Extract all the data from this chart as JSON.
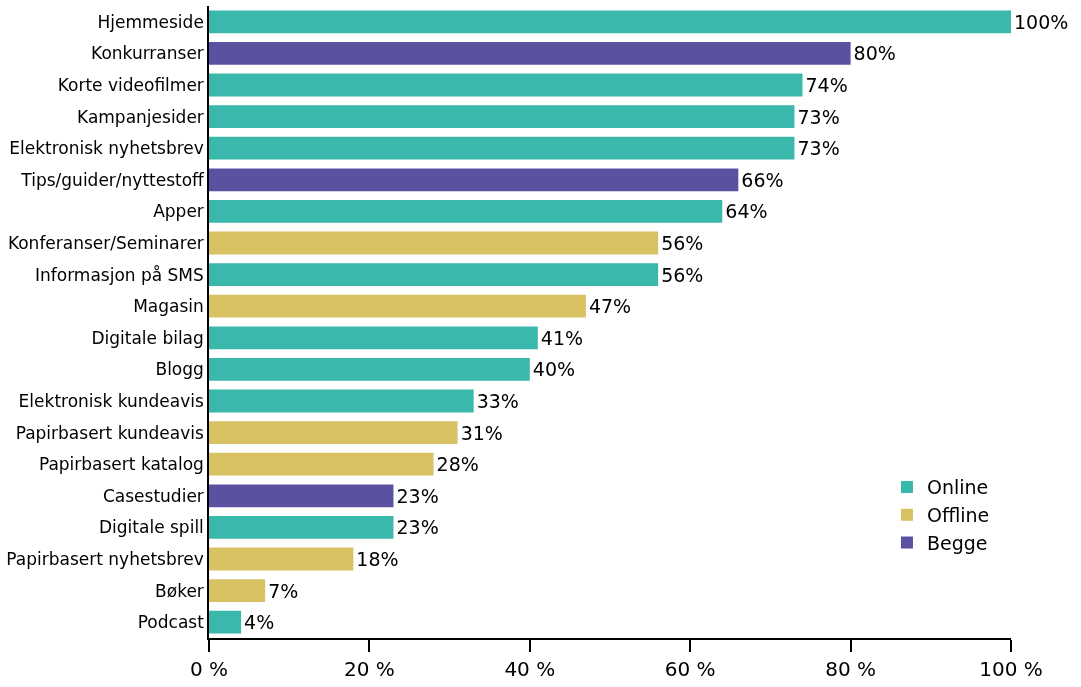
{
  "chart_data": {
    "type": "bar",
    "orientation": "horizontal",
    "categories": [
      "Hjemmeside",
      "Konkurranser",
      "Korte videofilmer",
      "Kampanjesider",
      "Elektronisk nyhetsbrev",
      "Tips/guider/nyttestoff",
      "Apper",
      "Konferanser/Seminarer",
      "Informasjon på SMS",
      "Magasin",
      "Digitale bilag",
      "Blogg",
      "Elektronisk kundeavis",
      "Papirbasert kundeavis",
      "Papirbasert katalog",
      "Casestudier",
      "Digitale spill",
      "Papirbasert nyhetsbrev",
      "Bøker",
      "Podcast"
    ],
    "series": [
      {
        "name": "Online",
        "color": "#3bb8ac",
        "values": [
          100,
          null,
          74,
          73,
          73,
          null,
          64,
          null,
          56,
          null,
          41,
          40,
          33,
          null,
          null,
          null,
          23,
          null,
          null,
          4
        ],
        "value_labels": [
          "100%",
          null,
          "74%",
          "73%",
          "73%",
          null,
          "64%",
          null,
          "56%",
          null,
          "41%",
          "40%",
          "33%",
          null,
          null,
          null,
          "23%",
          null,
          null,
          "4%"
        ]
      },
      {
        "name": "Offline",
        "color": "#d9c264",
        "values": [
          null,
          null,
          null,
          null,
          null,
          null,
          null,
          56,
          null,
          47,
          null,
          null,
          null,
          31,
          28,
          null,
          null,
          18,
          7,
          null
        ],
        "value_labels": [
          null,
          null,
          null,
          null,
          null,
          null,
          null,
          "56%",
          null,
          "47%",
          null,
          null,
          null,
          "31%",
          "28%",
          null,
          null,
          "18%",
          "7%",
          null
        ]
      },
      {
        "name": "Begge",
        "color": "#5a52a0",
        "values": [
          null,
          80,
          null,
          null,
          null,
          66,
          null,
          null,
          null,
          null,
          null,
          null,
          null,
          null,
          null,
          23,
          null,
          null,
          null,
          null
        ],
        "value_labels": [
          null,
          "80%",
          null,
          null,
          null,
          "66%",
          null,
          null,
          null,
          null,
          null,
          null,
          null,
          null,
          null,
          "23%",
          null,
          null,
          null,
          null
        ]
      }
    ],
    "xlim": [
      0,
      100
    ],
    "xticks": [
      {
        "value": 0,
        "label": "0 %"
      },
      {
        "value": 20,
        "label": "20 %"
      },
      {
        "value": 40,
        "label": "40 %"
      },
      {
        "value": 60,
        "label": "60 %"
      },
      {
        "value": 80,
        "label": "80 %"
      },
      {
        "value": 100,
        "label": "100 %"
      }
    ],
    "legend": "bottom right"
  }
}
